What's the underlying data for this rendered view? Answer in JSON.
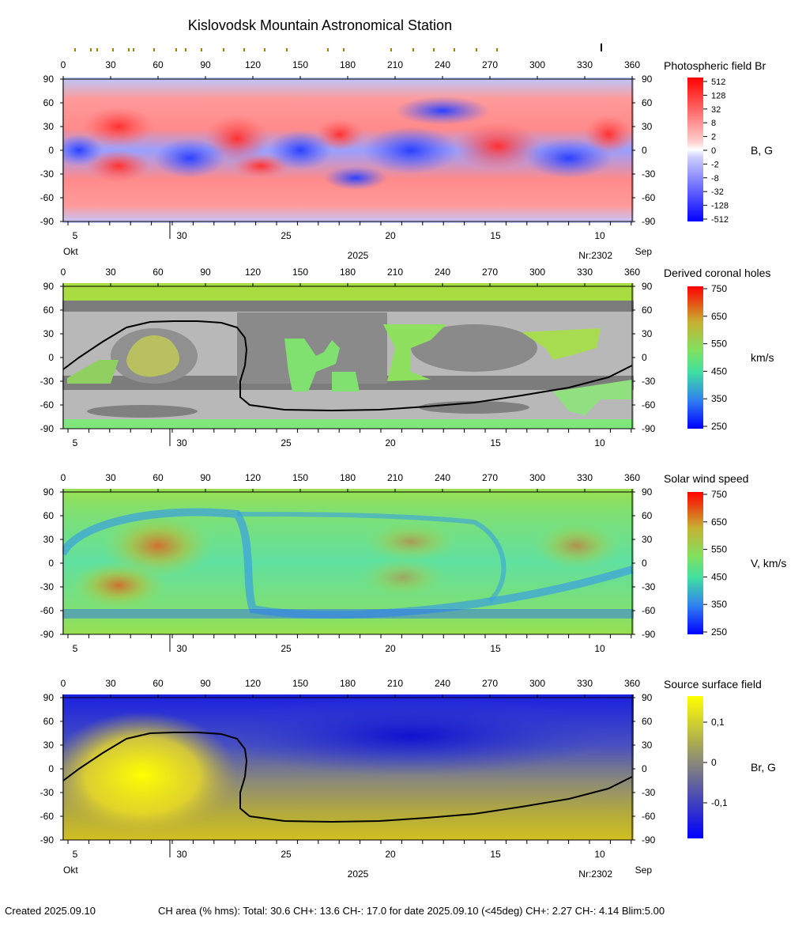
{
  "title": "Kislovodsk Mountain Astronomical Station",
  "footer": {
    "created": "Created  2025.09.10",
    "stats": "CH area (% hms): Total: 30.6 CH+: 13.6   CH-: 17.0 for date 2025.09.10 (<45deg) CH+: 2.27    CH-: 4.14 Blim:5.00"
  },
  "colors": {
    "field_pos": "#ff2020",
    "field_neg": "#2030ff",
    "ch_gray_dark": "#808080",
    "ch_gray_light": "#c0c0c0",
    "neutral_line": "#000000"
  },
  "chart_data": [
    {
      "type": "heatmap",
      "name_label": "Photospheric field Br",
      "unit_label": "B, G",
      "x_top_ticks": [
        "0",
        "30",
        "60",
        "90",
        "120",
        "150",
        "180",
        "210",
        "240",
        "270",
        "300",
        "330",
        "360"
      ],
      "y_ticks": [
        "90",
        "60",
        "30",
        "0",
        "-30",
        "-60",
        "-90"
      ],
      "x_bottom_ticks": [
        "5",
        "30",
        "25",
        "20",
        "15",
        "10"
      ],
      "month_left": "Okt",
      "month_right": "Sep",
      "year": "2025",
      "rotation": "Nr:2302",
      "colorbar_ticks": [
        "512",
        "128",
        "32",
        "8",
        "2",
        "0",
        "-2",
        "-8",
        "-32",
        "-128",
        "-512"
      ],
      "xlim": [
        0,
        360
      ],
      "ylim": [
        -90,
        90
      ],
      "observation_marks_lon": [
        3,
        13,
        17,
        27,
        37,
        40,
        53,
        67,
        73,
        83,
        97,
        110,
        123,
        137,
        163,
        173,
        203,
        217,
        230,
        243,
        257,
        270
      ],
      "current_lon_marker": 340
    },
    {
      "type": "heatmap",
      "name_label": "Derived coronal holes",
      "unit_label": "km/s",
      "x_top_ticks": [
        "0",
        "30",
        "60",
        "90",
        "120",
        "150",
        "180",
        "210",
        "240",
        "270",
        "300",
        "330",
        "360"
      ],
      "y_ticks": [
        "90",
        "60",
        "30",
        "0",
        "-30",
        "-60",
        "-90"
      ],
      "x_bottom_ticks": [
        "5",
        "30",
        "25",
        "20",
        "15",
        "10"
      ],
      "colorbar_ticks": [
        "750",
        "650",
        "550",
        "450",
        "350",
        "250"
      ],
      "colorbar_range": [
        250,
        750
      ],
      "xlim": [
        0,
        360
      ],
      "ylim": [
        -90,
        90
      ]
    },
    {
      "type": "heatmap",
      "name_label": "Solar wind speed",
      "unit_label": "V, km/s",
      "x_top_ticks": [
        "0",
        "30",
        "60",
        "90",
        "120",
        "150",
        "180",
        "210",
        "240",
        "270",
        "300",
        "330",
        "360"
      ],
      "y_ticks": [
        "90",
        "60",
        "30",
        "0",
        "-30",
        "-60",
        "-90"
      ],
      "x_bottom_ticks": [
        "5",
        "30",
        "25",
        "20",
        "15",
        "10"
      ],
      "colorbar_ticks": [
        "750",
        "650",
        "550",
        "450",
        "350",
        "250"
      ],
      "colorbar_range": [
        250,
        750
      ],
      "xlim": [
        0,
        360
      ],
      "ylim": [
        -90,
        90
      ]
    },
    {
      "type": "heatmap",
      "name_label": "Source surface field",
      "unit_label": "Br, G",
      "x_top_ticks": [
        "0",
        "30",
        "60",
        "90",
        "120",
        "150",
        "180",
        "210",
        "240",
        "270",
        "300",
        "330",
        "360"
      ],
      "y_ticks": [
        "90",
        "60",
        "30",
        "0",
        "-30",
        "-60",
        "-90"
      ],
      "x_bottom_ticks": [
        "5",
        "30",
        "25",
        "20",
        "15",
        "10"
      ],
      "month_left": "Okt",
      "month_right": "Sep",
      "year": "2025",
      "rotation": "Nr:2302",
      "colorbar_ticks": [
        "0,1",
        "0",
        "-0,1"
      ],
      "xlim": [
        0,
        360
      ],
      "ylim": [
        -90,
        90
      ],
      "neutral_line": [
        [
          0,
          -15
        ],
        [
          10,
          0
        ],
        [
          25,
          20
        ],
        [
          40,
          38
        ],
        [
          55,
          45
        ],
        [
          70,
          46
        ],
        [
          85,
          46
        ],
        [
          100,
          44
        ],
        [
          110,
          38
        ],
        [
          115,
          25
        ],
        [
          116,
          10
        ],
        [
          115,
          -10
        ],
        [
          112,
          -30
        ],
        [
          112,
          -50
        ],
        [
          118,
          -60
        ],
        [
          140,
          -66
        ],
        [
          170,
          -67
        ],
        [
          200,
          -66
        ],
        [
          230,
          -62
        ],
        [
          260,
          -57
        ],
        [
          290,
          -48
        ],
        [
          320,
          -38
        ],
        [
          345,
          -25
        ],
        [
          360,
          -10
        ]
      ]
    }
  ]
}
